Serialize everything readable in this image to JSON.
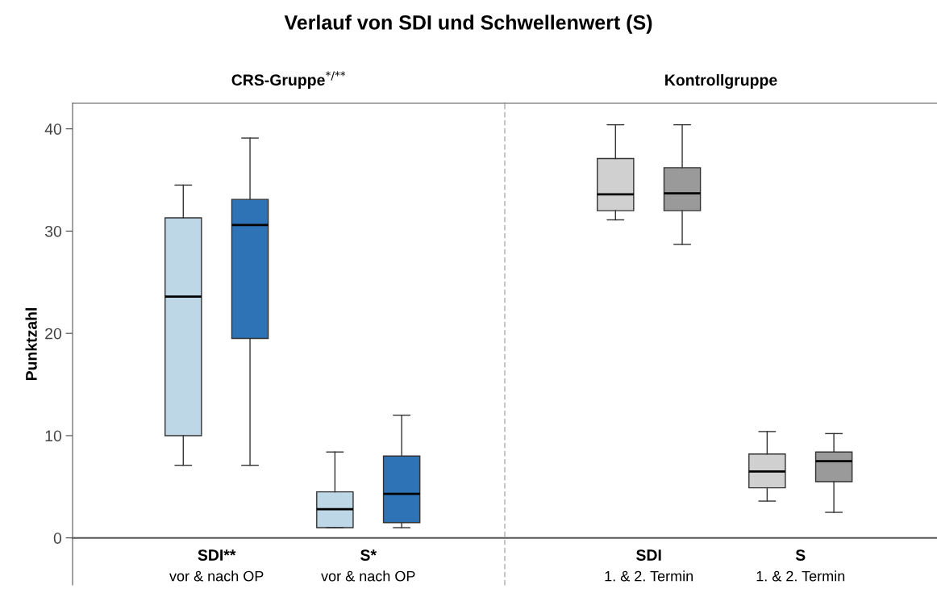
{
  "chart_data": [
    {
      "type": "box",
      "title": "Verlauf von SDI und Schwellenwert (S)",
      "subtitle": "CRS-Gruppe$^{*/**}$",
      "ylabel": "Punktzahl",
      "categories": [
        "SDI**\nvor & nach OP",
        "S*\nvor & nach OP"
      ],
      "ylim": [
        -4.6,
        42.5
      ],
      "yticks": [
        0,
        10,
        20,
        30,
        40
      ],
      "grid": false,
      "series": [
        {
          "color": "#bdd7e7",
          "boxes": [
            {
              "low": 7.1,
              "q1": 10.0,
              "median": 23.6,
              "q3": 31.3,
              "high": 34.5
            },
            {
              "low": 1.0,
              "q1": 1.0,
              "median": 2.8,
              "q3": 4.5,
              "high": 8.4
            }
          ]
        },
        {
          "color": "#2e73b5",
          "boxes": [
            {
              "low": 7.1,
              "q1": 19.5,
              "median": 30.6,
              "q3": 33.1,
              "high": 39.1
            },
            {
              "low": 1.0,
              "q1": 1.5,
              "median": 4.3,
              "q3": 8.0,
              "high": 12.0
            }
          ]
        }
      ]
    },
    {
      "type": "box",
      "subtitle": "Kontrollgruppe",
      "categories": [
        "SDI\n1. & 2. Termin",
        "S\n1. & 2. Termin"
      ],
      "ylim": [
        -4.6,
        42.5
      ],
      "tick_labels": "x",
      "grid": false,
      "ref_lines": [
        {
          "axis": "y",
          "value": 0,
          "color": "#555555"
        }
      ],
      "series": [
        {
          "color": "#d0d0d0",
          "boxes": [
            {
              "low": 31.1,
              "q1": 32.0,
              "median": 33.6,
              "q3": 37.1,
              "high": 40.4
            },
            {
              "low": 3.6,
              "q1": 4.9,
              "median": 6.5,
              "q3": 8.2,
              "high": 10.4
            }
          ]
        },
        {
          "color": "#9a9a9a",
          "boxes": [
            {
              "low": 28.7,
              "q1": 32.0,
              "median": 33.7,
              "q3": 36.2,
              "high": 40.4
            },
            {
              "low": 2.5,
              "q1": 5.5,
              "median": 7.5,
              "q3": 8.4,
              "high": 10.2
            }
          ]
        }
      ]
    }
  ]
}
